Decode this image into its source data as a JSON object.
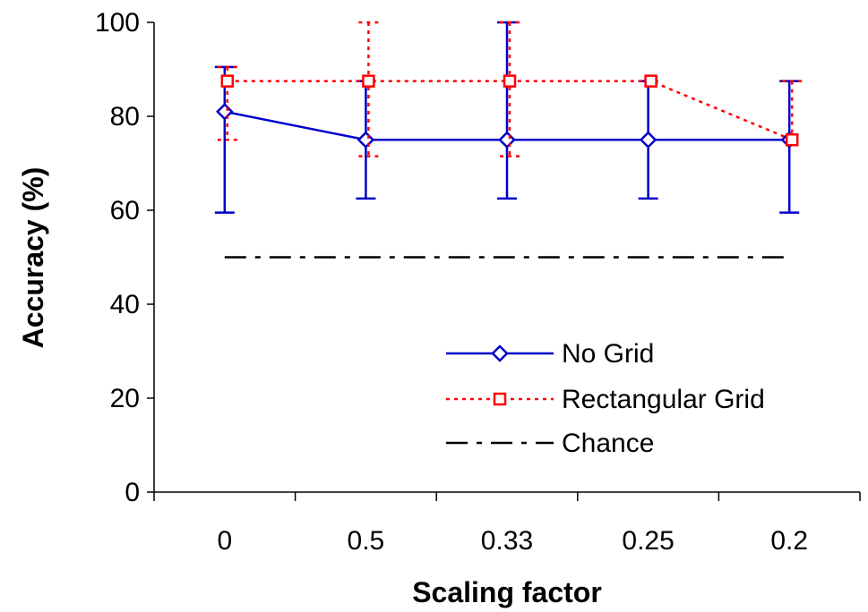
{
  "chart_data": {
    "type": "line",
    "title": "",
    "xlabel": "Scaling factor",
    "ylabel": "Accuracy (%)",
    "categories": [
      "0",
      "0.5",
      "0.33",
      "0.25",
      "0.2"
    ],
    "ylim": [
      0,
      100
    ],
    "yticks": [
      0,
      20,
      40,
      60,
      80,
      100
    ],
    "grid": false,
    "legend_position": "center-right",
    "series": [
      {
        "name": "No Grid",
        "color": "#0000cc",
        "line_style": "solid",
        "marker": "diamond",
        "values": [
          81,
          75,
          75,
          75,
          75
        ],
        "error_high": [
          90.5,
          87.5,
          100,
          87.5,
          87.5
        ],
        "error_low": [
          59.5,
          62.5,
          62.5,
          62.5,
          59.5
        ]
      },
      {
        "name": "Rectangular Grid",
        "color": "#ff0000",
        "line_style": "dotted",
        "marker": "square",
        "values": [
          87.5,
          87.5,
          87.5,
          87.5,
          75
        ],
        "error_high": [
          90.5,
          100,
          100,
          87.5,
          87.5
        ],
        "error_low": [
          75,
          71.5,
          71.5,
          87.5,
          75
        ]
      },
      {
        "name": "Chance",
        "color": "#000000",
        "line_style": "dash-dot",
        "marker": "none",
        "values": [
          50,
          50,
          50,
          50,
          50
        ]
      }
    ]
  }
}
